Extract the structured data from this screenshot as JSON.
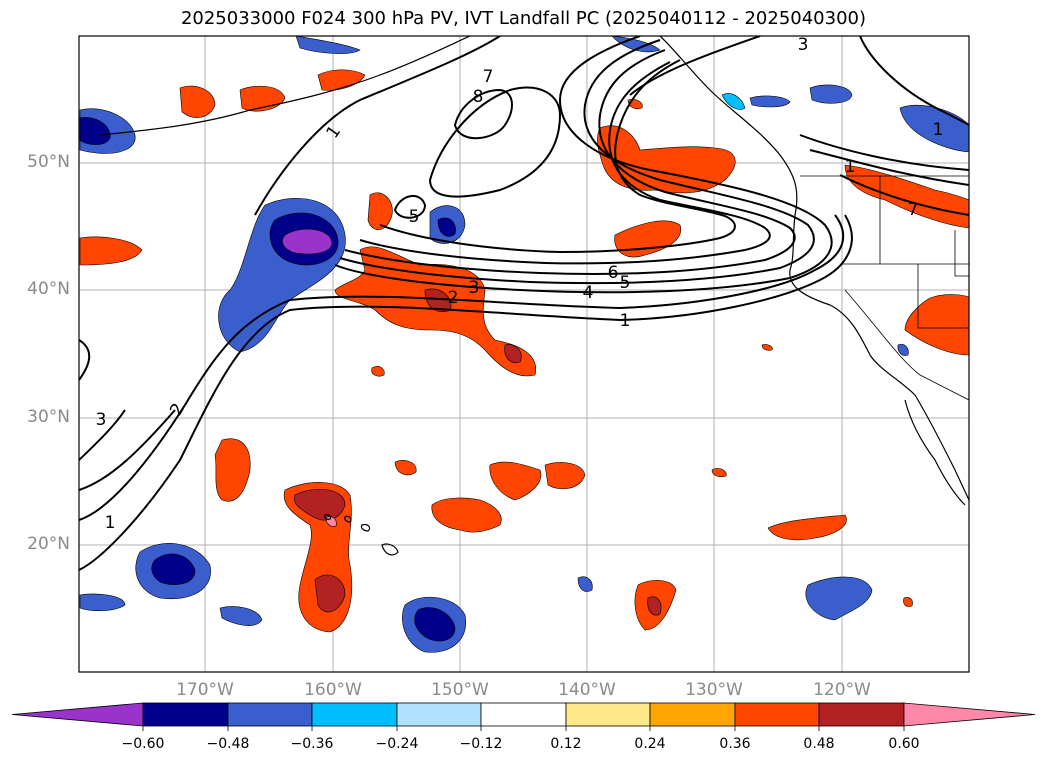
{
  "title": "2025033000 F024 300 hPa PV, IVT Landfall PC (2025040112 - 2025040300)",
  "lat_labels": [
    "50°N",
    "40°N",
    "30°N",
    "20°N"
  ],
  "lon_labels": [
    "170°W",
    "160°W",
    "150°W",
    "140°W",
    "130°W",
    "120°W"
  ],
  "contour_labels": [
    "1",
    "1",
    "1",
    "1",
    "1",
    "2",
    "2",
    "3",
    "3",
    "3",
    "4",
    "5",
    "5",
    "6",
    "7",
    "7",
    "8"
  ],
  "colorbar": {
    "tick_labels": [
      "−0.60",
      "−0.48",
      "−0.36",
      "−0.24",
      "−0.12",
      "0.12",
      "0.24",
      "0.36",
      "0.48",
      "0.60"
    ],
    "colors": [
      "#9933cc",
      "#00008b",
      "#3a5fcd",
      "#00bfff",
      "#b0e2ff",
      "#ffffff",
      "#ffe88a",
      "#ffa500",
      "#ff4500",
      "#b22222",
      "#ff88aa"
    ]
  }
}
